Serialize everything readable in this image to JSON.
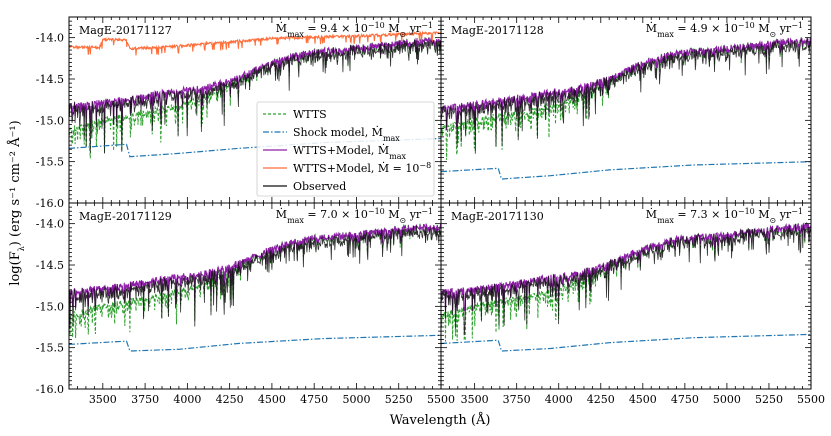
{
  "chart_data": {
    "type": "line",
    "xlabel": "Wavelength (Å)",
    "ylabel": "log(F",
    "ylabel_sub": "λ",
    "ylabel_units": ") (erg s⁻¹ cm⁻² Å⁻¹)",
    "xlim": [
      3300,
      5500
    ],
    "ylim": [
      -16.0,
      -13.75
    ],
    "x_ticks": [
      3500,
      3750,
      4000,
      4250,
      4500,
      4750,
      5000,
      5250,
      5500
    ],
    "x_tick_labels": [
      "3500",
      "3750",
      "4000",
      "4250",
      "4500",
      "4750",
      "5000",
      "5250",
      "5500"
    ],
    "y_ticks": [
      -16.0,
      -15.5,
      -15.0,
      -14.5,
      -14.0
    ],
    "y_tick_labels": [
      "-16.0",
      "-15.5",
      "-15.0",
      "-14.5",
      "-14.0"
    ],
    "colors": {
      "wtts": "#2ca02c",
      "shock": "#1f77b4",
      "model": "#8e1ea8",
      "model_high": "#ff6f3c",
      "observed": "#111111"
    },
    "legend": {
      "entries": [
        {
          "key": "wtts",
          "label": "WTTS",
          "style": "dashed"
        },
        {
          "key": "shock",
          "label": "Shock model, Ṁ",
          "sub": "max",
          "style": "dashdot"
        },
        {
          "key": "model",
          "label": "WTTS+Model, Ṁ",
          "sub": "max",
          "style": "solid"
        },
        {
          "key": "model_high",
          "label": "WTTS+Model, Ṁ = 10",
          "sup": "−8",
          "style": "solid"
        },
        {
          "key": "observed",
          "label": "Observed",
          "style": "solid"
        }
      ]
    },
    "panels": [
      {
        "title": "MagE-20171127",
        "mdot_prefix": "Ṁ",
        "mdot_sub": "max",
        "mdot_value": " = 9.4 × 10",
        "mdot_exp": "−10",
        "mdot_units": " M",
        "mdot_sun": "⊙",
        "mdot_yr": " yr",
        "mdot_yr_exp": "−1",
        "shock": [
          [
            3300,
            -15.34
          ],
          [
            3640,
            -15.29
          ],
          [
            3660,
            -15.44
          ],
          [
            3950,
            -15.4
          ],
          [
            4300,
            -15.34
          ],
          [
            4800,
            -15.27
          ],
          [
            5500,
            -15.22
          ]
        ],
        "wtts_base": [
          [
            3300,
            -15.12
          ],
          [
            3500,
            -15.0
          ],
          [
            3700,
            -14.92
          ],
          [
            3900,
            -14.85
          ],
          [
            4100,
            -14.72
          ],
          [
            4300,
            -14.52
          ],
          [
            4500,
            -14.3
          ],
          [
            4700,
            -14.18
          ],
          [
            5000,
            -14.12
          ],
          [
            5300,
            -14.05
          ],
          [
            5500,
            -14.02
          ]
        ],
        "model_base": [
          [
            3300,
            -14.82
          ],
          [
            3500,
            -14.78
          ],
          [
            3700,
            -14.72
          ],
          [
            3900,
            -14.65
          ],
          [
            4100,
            -14.6
          ],
          [
            4300,
            -14.48
          ],
          [
            4500,
            -14.3
          ],
          [
            4700,
            -14.18
          ],
          [
            5000,
            -14.12
          ],
          [
            5300,
            -14.05
          ],
          [
            5500,
            -14.02
          ]
        ],
        "model_high": [
          [
            3300,
            -14.11
          ],
          [
            3480,
            -14.12
          ],
          [
            3500,
            -14.02
          ],
          [
            3640,
            -14.03
          ],
          [
            3660,
            -14.13
          ],
          [
            3800,
            -14.12
          ],
          [
            3950,
            -14.1
          ],
          [
            4200,
            -14.06
          ],
          [
            4500,
            -14.01
          ],
          [
            5000,
            -13.98
          ],
          [
            5500,
            -13.94
          ]
        ],
        "observed_offset": -0.05
      },
      {
        "title": "MagE-20171128",
        "mdot_prefix": "Ṁ",
        "mdot_sub": "max",
        "mdot_value": " = 4.9 × 10",
        "mdot_exp": "−10",
        "mdot_units": " M",
        "mdot_sun": "⊙",
        "mdot_yr": " yr",
        "mdot_yr_exp": "−1",
        "shock": [
          [
            3300,
            -15.62
          ],
          [
            3640,
            -15.58
          ],
          [
            3660,
            -15.71
          ],
          [
            3950,
            -15.67
          ],
          [
            4300,
            -15.6
          ],
          [
            4800,
            -15.54
          ],
          [
            5500,
            -15.5
          ]
        ],
        "wtts_base": [
          [
            3300,
            -15.1
          ],
          [
            3500,
            -15.0
          ],
          [
            3700,
            -14.93
          ],
          [
            3900,
            -14.86
          ],
          [
            4100,
            -14.73
          ],
          [
            4300,
            -14.52
          ],
          [
            4500,
            -14.3
          ],
          [
            4700,
            -14.18
          ],
          [
            5000,
            -14.13
          ],
          [
            5300,
            -14.05
          ],
          [
            5500,
            -14.03
          ]
        ],
        "model_base": [
          [
            3300,
            -14.85
          ],
          [
            3500,
            -14.8
          ],
          [
            3700,
            -14.74
          ],
          [
            3900,
            -14.67
          ],
          [
            4100,
            -14.62
          ],
          [
            4300,
            -14.49
          ],
          [
            4500,
            -14.3
          ],
          [
            4700,
            -14.18
          ],
          [
            5000,
            -14.13
          ],
          [
            5300,
            -14.05
          ],
          [
            5500,
            -14.03
          ]
        ],
        "model_high": [],
        "observed_offset": -0.05
      },
      {
        "title": "MagE-20171129",
        "mdot_prefix": "Ṁ",
        "mdot_sub": "max",
        "mdot_value": " = 7.0 × 10",
        "mdot_exp": "−10",
        "mdot_units": " M",
        "mdot_sun": "⊙",
        "mdot_yr": " yr",
        "mdot_yr_exp": "−1",
        "shock": [
          [
            3300,
            -15.46
          ],
          [
            3640,
            -15.42
          ],
          [
            3660,
            -15.54
          ],
          [
            3950,
            -15.52
          ],
          [
            4300,
            -15.45
          ],
          [
            4800,
            -15.39
          ],
          [
            5500,
            -15.35
          ]
        ],
        "wtts_base": [
          [
            3300,
            -15.12
          ],
          [
            3500,
            -15.0
          ],
          [
            3700,
            -14.92
          ],
          [
            3900,
            -14.85
          ],
          [
            4100,
            -14.72
          ],
          [
            4300,
            -14.52
          ],
          [
            4500,
            -14.3
          ],
          [
            4700,
            -14.18
          ],
          [
            5000,
            -14.12
          ],
          [
            5300,
            -14.05
          ],
          [
            5500,
            -14.02
          ]
        ],
        "model_base": [
          [
            3300,
            -14.82
          ],
          [
            3500,
            -14.78
          ],
          [
            3700,
            -14.72
          ],
          [
            3900,
            -14.65
          ],
          [
            4100,
            -14.6
          ],
          [
            4300,
            -14.48
          ],
          [
            4500,
            -14.3
          ],
          [
            4700,
            -14.18
          ],
          [
            5000,
            -14.12
          ],
          [
            5300,
            -14.05
          ],
          [
            5500,
            -14.02
          ]
        ],
        "model_high": [],
        "observed_offset": -0.06
      },
      {
        "title": "MagE-20171130",
        "mdot_prefix": "Ṁ",
        "mdot_sub": "max",
        "mdot_value": " = 7.3 × 10",
        "mdot_exp": "−10",
        "mdot_units": " M",
        "mdot_sun": "⊙",
        "mdot_yr": " yr",
        "mdot_yr_exp": "−1",
        "shock": [
          [
            3300,
            -15.45
          ],
          [
            3640,
            -15.41
          ],
          [
            3660,
            -15.54
          ],
          [
            3950,
            -15.51
          ],
          [
            4300,
            -15.44
          ],
          [
            4800,
            -15.38
          ],
          [
            5500,
            -15.34
          ]
        ],
        "wtts_base": [
          [
            3300,
            -15.12
          ],
          [
            3500,
            -15.0
          ],
          [
            3700,
            -14.92
          ],
          [
            3900,
            -14.85
          ],
          [
            4100,
            -14.72
          ],
          [
            4300,
            -14.52
          ],
          [
            4500,
            -14.3
          ],
          [
            4700,
            -14.18
          ],
          [
            5000,
            -14.12
          ],
          [
            5300,
            -14.05
          ],
          [
            5500,
            -14.02
          ]
        ],
        "model_base": [
          [
            3300,
            -14.83
          ],
          [
            3500,
            -14.79
          ],
          [
            3700,
            -14.73
          ],
          [
            3900,
            -14.66
          ],
          [
            4100,
            -14.61
          ],
          [
            4300,
            -14.48
          ],
          [
            4500,
            -14.3
          ],
          [
            4700,
            -14.18
          ],
          [
            5000,
            -14.12
          ],
          [
            5300,
            -14.05
          ],
          [
            5500,
            -14.02
          ]
        ],
        "model_high": [],
        "observed_offset": -0.05
      }
    ]
  }
}
